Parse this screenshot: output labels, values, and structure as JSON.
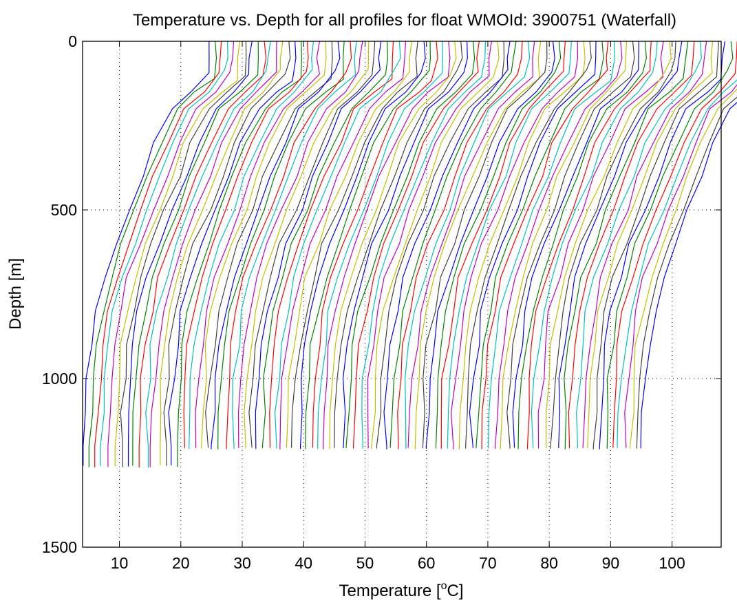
{
  "chart_data": {
    "type": "line",
    "title": "Temperature vs. Depth for all profiles for float WMOId: 3900751 (Waterfall)",
    "xlabel_prefix": "Temperature [",
    "xlabel_sup": "o",
    "xlabel_suffix": "C]",
    "ylabel": "Depth [m]",
    "xlim": [
      4,
      108
    ],
    "ylim": [
      0,
      1500
    ],
    "y_reversed": true,
    "grid": true,
    "xticks": [
      10,
      20,
      30,
      40,
      50,
      60,
      70,
      80,
      90,
      100
    ],
    "yticks": [
      0,
      500,
      1000,
      1500
    ],
    "profile_count": 92,
    "profile_offset_step": 1,
    "color_cycle": [
      "#0000ff",
      "#008000",
      "#ff0000",
      "#00bfbf",
      "#bf00bf",
      "#bfbf00",
      "#404040"
    ],
    "depths": [
      0,
      50,
      100,
      150,
      200,
      300,
      400,
      500,
      600,
      700,
      800,
      900,
      1000,
      1100,
      1200
    ],
    "representative_profile_temperature": [
      24.6,
      24.5,
      24.2,
      21.5,
      18.5,
      15.8,
      13.6,
      11.5,
      9.3,
      7.5,
      6.2,
      5.3,
      4.8,
      4.4,
      4.3
    ],
    "surface_temperature_range": [
      24,
      106
    ],
    "max_depth_range": [
      1210,
      1265
    ]
  }
}
